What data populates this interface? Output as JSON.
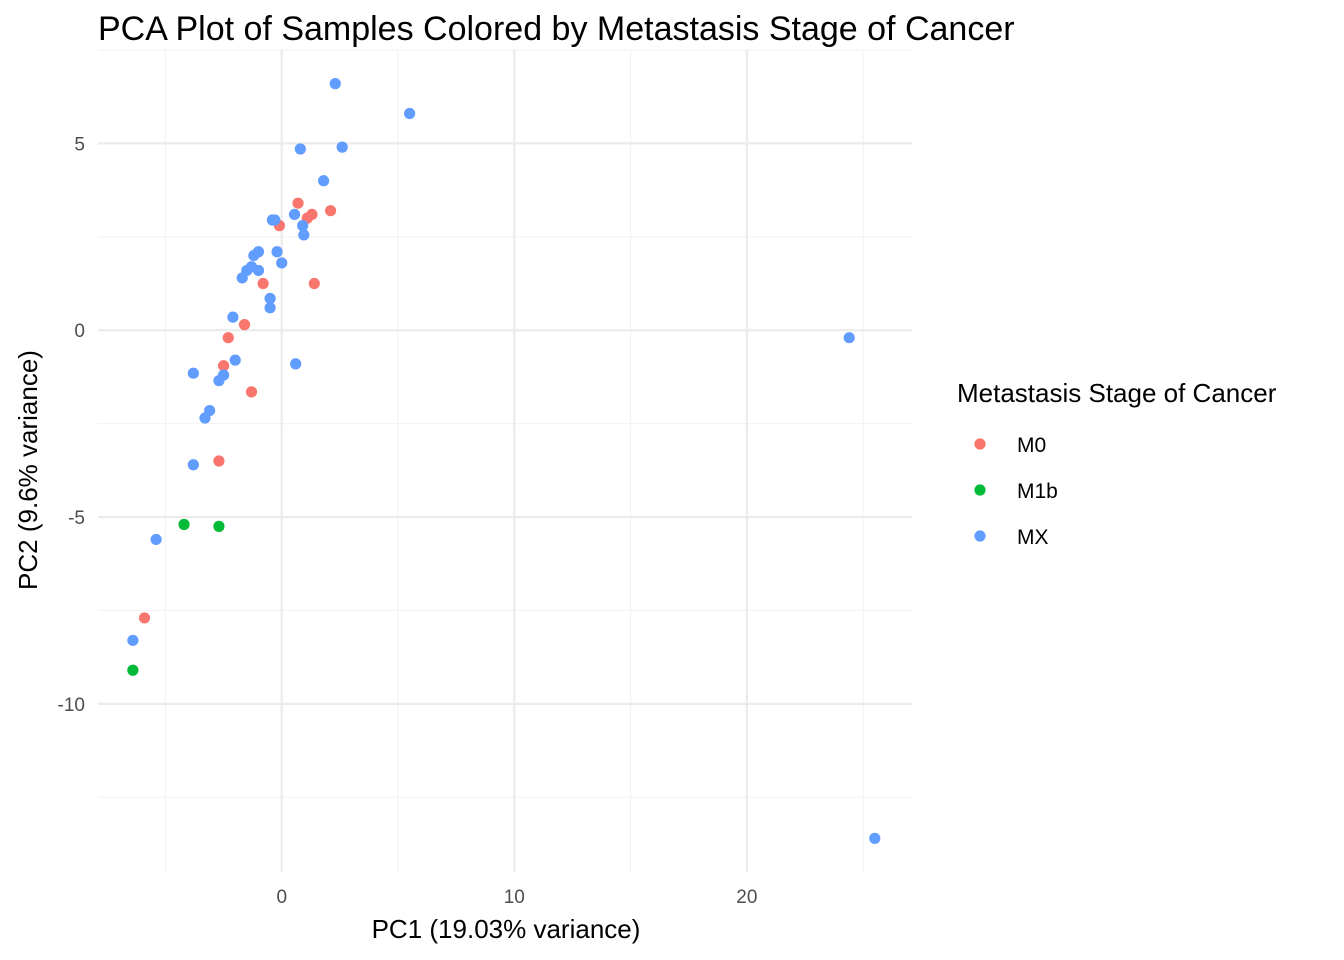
{
  "chart_data": {
    "type": "scatter",
    "title": "PCA Plot of Samples Colored by Metastasis Stage of Cancer",
    "xlabel": "PC1 (19.03% variance)",
    "ylabel": "PC2 (9.6% variance)",
    "xlim": [
      -7.9,
      27.1
    ],
    "ylim": [
      -14.5,
      7.5
    ],
    "x_ticks": [
      0,
      10,
      20
    ],
    "y_ticks": [
      5,
      0,
      -5,
      -10
    ],
    "x_minor_ticks": [
      -5,
      5,
      15,
      25
    ],
    "y_minor_ticks": [
      7.5,
      2.5,
      -2.5,
      -7.5,
      -12.5
    ],
    "grid": true,
    "legend": {
      "title": "Metastasis Stage of Cancer",
      "position": "right",
      "entries": [
        {
          "label": "M0",
          "color": "#F8766D"
        },
        {
          "label": "M1b",
          "color": "#00BA38"
        },
        {
          "label": "MX",
          "color": "#619CFF"
        }
      ]
    },
    "series": [
      {
        "name": "M0",
        "color": "#F8766D",
        "points": [
          [
            0.7,
            3.4
          ],
          [
            -0.1,
            2.8
          ],
          [
            1.1,
            3.0
          ],
          [
            1.3,
            3.1
          ],
          [
            2.1,
            3.2
          ],
          [
            -0.8,
            1.25
          ],
          [
            1.4,
            1.25
          ],
          [
            -1.6,
            0.15
          ],
          [
            -2.3,
            -0.2
          ],
          [
            -2.5,
            -0.95
          ],
          [
            -1.3,
            -1.65
          ],
          [
            -2.7,
            -3.5
          ],
          [
            -5.9,
            -7.7
          ]
        ]
      },
      {
        "name": "M1b",
        "color": "#00BA38",
        "points": [
          [
            -4.2,
            -5.2
          ],
          [
            -2.7,
            -5.25
          ],
          [
            -6.4,
            -9.1
          ]
        ]
      },
      {
        "name": "MX",
        "color": "#619CFF",
        "points": [
          [
            2.3,
            6.6
          ],
          [
            5.5,
            5.8
          ],
          [
            0.8,
            4.85
          ],
          [
            2.6,
            4.9
          ],
          [
            1.8,
            4.0
          ],
          [
            -0.4,
            2.95
          ],
          [
            -0.3,
            2.95
          ],
          [
            0.55,
            3.1
          ],
          [
            0.9,
            2.8
          ],
          [
            0.95,
            2.55
          ],
          [
            -1.0,
            2.1
          ],
          [
            -0.2,
            2.1
          ],
          [
            -1.2,
            2.0
          ],
          [
            0.0,
            1.8
          ],
          [
            -1.3,
            1.7
          ],
          [
            -1.5,
            1.6
          ],
          [
            -1.0,
            1.6
          ],
          [
            -1.7,
            1.4
          ],
          [
            -0.5,
            0.85
          ],
          [
            -0.5,
            0.6
          ],
          [
            -2.1,
            0.35
          ],
          [
            -2.0,
            -0.8
          ],
          [
            0.6,
            -0.9
          ],
          [
            -3.8,
            -1.15
          ],
          [
            -2.5,
            -1.2
          ],
          [
            -2.7,
            -1.35
          ],
          [
            -3.1,
            -2.15
          ],
          [
            -3.3,
            -2.35
          ],
          [
            -3.8,
            -3.6
          ],
          [
            -5.4,
            -5.6
          ],
          [
            -6.4,
            -8.3
          ],
          [
            24.4,
            -0.2
          ],
          [
            25.5,
            -13.6
          ]
        ]
      }
    ]
  }
}
